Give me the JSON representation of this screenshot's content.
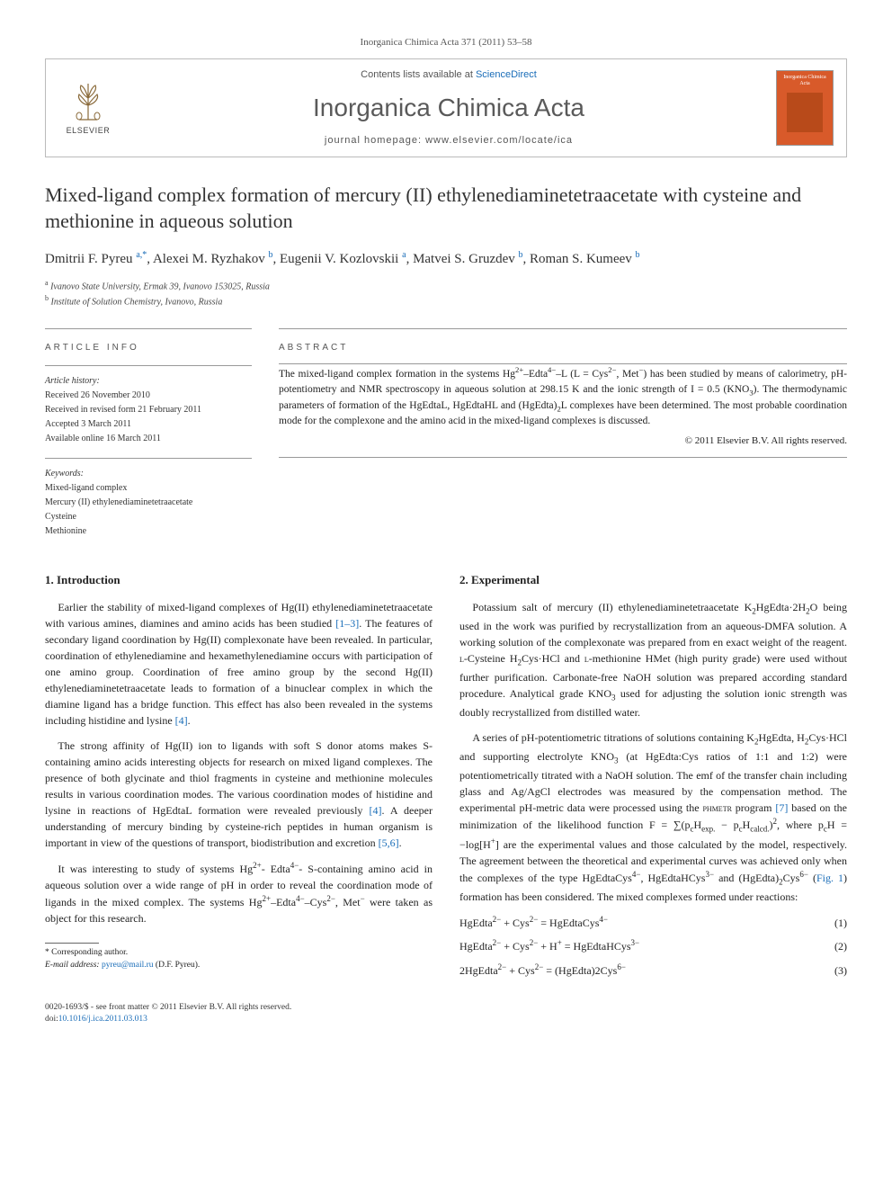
{
  "header": {
    "citation": "Inorganica Chimica Acta 371 (2011) 53–58",
    "contents_prefix": "Contents lists available at ",
    "contents_link": "ScienceDirect",
    "journal_name": "Inorganica Chimica Acta",
    "homepage_prefix": "journal homepage: ",
    "homepage_url": "www.elsevier.com/locate/ica",
    "elsevier_label": "ELSEVIER",
    "cover_title": "Inorganica Chimica Acta"
  },
  "title": "Mixed-ligand complex formation of mercury (II) ethylenediaminetetraacetate with cysteine and methionine in aqueous solution",
  "authors_html": "Dmitrii F. Pyreu <span class='sup link'>a,</span><span class='sup link'>*</span>, Alexei M. Ryzhakov <span class='sup link'>b</span>, Eugenii V. Kozlovskii <span class='sup link'>a</span>, Matvei S. Gruzdev <span class='sup link'>b</span>, Roman S. Kumeev <span class='sup link'>b</span>",
  "affiliations": {
    "a": "Ivanovo State University, Ermak 39, Ivanovo 153025, Russia",
    "b": "Institute of Solution Chemistry, Ivanovo, Russia"
  },
  "article_info": {
    "heading": "ARTICLE INFO",
    "history_label": "Article history:",
    "received": "Received 26 November 2010",
    "revised": "Received in revised form 21 February 2011",
    "accepted": "Accepted 3 March 2011",
    "online": "Available online 16 March 2011",
    "keywords_label": "Keywords:",
    "keywords": [
      "Mixed-ligand complex",
      "Mercury (II) ethylenediaminetetraacetate",
      "Cysteine",
      "Methionine"
    ]
  },
  "abstract": {
    "heading": "ABSTRACT",
    "text_html": "The mixed-ligand complex formation in the systems Hg<sup>2+</sup>–Edta<sup>4−</sup>–L (L = Cys<sup>2−</sup>, Met<sup>−</sup>) has been studied by means of calorimetry, pH-potentiometry and NMR spectroscopy in aqueous solution at 298.15 K and the ionic strength of I = 0.5 (KNO<sub>3</sub>). The thermodynamic parameters of formation of the HgEdtaL, HgEdtaHL and (HgEdta)<sub>2</sub>L complexes have been determined. The most probable coordination mode for the complexone and the amino acid in the mixed-ligand complexes is discussed.",
    "copyright": "© 2011 Elsevier B.V. All rights reserved."
  },
  "sections": {
    "intro_heading": "1. Introduction",
    "exp_heading": "2. Experimental",
    "intro_p1_html": "Earlier the stability of mixed-ligand complexes of Hg(II) ethylenediaminetetraacetate with various amines, diamines and amino acids has been studied <span class='ref'>[1–3]</span>. The features of secondary ligand coordination by Hg(II) complexonate have been revealed. In particular, coordination of ethylenediamine and hexamethylenediamine occurs with participation of one amino group. Coordination of free amino group by the second Hg(II) ethylenediaminetetraacetate leads to formation of a binuclear complex in which the diamine ligand has a bridge function. This effect has also been revealed in the systems including histidine and lysine <span class='ref'>[4]</span>.",
    "intro_p2_html": "The strong affinity of Hg(II) ion to ligands with soft S donor atoms makes S-containing amino acids interesting objects for research on mixed ligand complexes. The presence of both glycinate and thiol fragments in cysteine and methionine molecules results in various coordination modes. The various coordination modes of histidine and lysine in reactions of HgEdtaL formation were revealed previously <span class='ref'>[4]</span>. A deeper understanding of mercury binding by cysteine-rich peptides in human organism is important in view of the questions of transport, biodistribution and excretion <span class='ref'>[5,6]</span>.",
    "intro_p3_html": "It was interesting to study of systems Hg<sup>2+</sup>- Edta<sup>4−</sup>- S-containing amino acid in aqueous solution over a wide range of pH in order to reveal the coordination mode of ligands in the mixed complex. The systems Hg<sup>2+</sup>–Edta<sup>4−</sup>–Cys<sup>2−</sup>, Met<sup>−</sup> were taken as object for this research.",
    "exp_p1_html": "Potassium salt of mercury (II) ethylenediaminetetraacetate K<sub>2</sub>HgEdta·2H<sub>2</sub>O being used in the work was purified by recrystallization from an aqueous-DMFA solution. A working solution of the complexonate was prepared from en exact weight of the reagent. <span class='smallcaps'>l</span>-Cysteine H<sub>2</sub>Cys·HCl and <span class='smallcaps'>l</span>-methionine HMet (high purity grade) were used without further purification. Carbonate-free NaOH solution was prepared according standard procedure. Analytical grade KNO<sub>3</sub> used for adjusting the solution ionic strength was doubly recrystallized from distilled water.",
    "exp_p2_html": "A series of pH-potentiometric titrations of solutions containing K<sub>2</sub>HgEdta, H<sub>2</sub>Cys·HCl and supporting electrolyte KNO<sub>3</sub> (at HgEdta:Cys ratios of 1:1 and 1:2) were potentiometrically titrated with a NaOH solution. The emf of the transfer chain including glass and Ag/AgCl electrodes was measured by the compensation method. The experimental pH-metric data were processed using the <span class='smallcaps'>phmetr</span> program <span class='ref'>[7]</span> based on the minimization of the likelihood function F = ∑(p<sub>c</sub>H<sub>exp.</sub> − p<sub>c</sub>H<sub>calcd.</sub>)<sup>2</sup>, where p<sub>c</sub>H = −log[H<sup>+</sup>] are the experimental values and those calculated by the model, respectively. The agreement between the theoretical and experimental curves was achieved only when the complexes of the type HgEdtaCys<sup>4−</sup>, HgEdtaHCys<sup>3−</sup> and (HgEdta)<sub>2</sub>Cys<sup>6−</sup> (<span class='ref'>Fig. 1</span>) formation has been considered. The mixed complexes formed under reactions:"
  },
  "equations": [
    {
      "eq_html": "HgEdta<sup>2−</sup> + Cys<sup>2−</sup> = HgEdtaCys<sup>4−</sup>",
      "num": "(1)"
    },
    {
      "eq_html": "HgEdta<sup>2−</sup> + Cys<sup>2−</sup> + H<sup>+</sup> = HgEdtaHCys<sup>3−</sup>",
      "num": "(2)"
    },
    {
      "eq_html": "2HgEdta<sup>2−</sup> + Cys<sup>2−</sup> = (HgEdta)2Cys<sup>6−</sup>",
      "num": "(3)"
    }
  ],
  "footnote": {
    "corr_label": "* Corresponding author.",
    "email_label": "E-mail address: ",
    "email": "pyreu@mail.ru",
    "email_who": " (D.F. Pyreu)."
  },
  "footer": {
    "issn_line": "0020-1693/$ - see front matter © 2011 Elsevier B.V. All rights reserved.",
    "doi_label": "doi:",
    "doi": "10.1016/j.ica.2011.03.013"
  },
  "colors": {
    "link": "#1a6db8",
    "cover_bg": "#d85a2a",
    "cover_inner": "#b84a1a",
    "rule": "#999999",
    "text": "#222222"
  }
}
